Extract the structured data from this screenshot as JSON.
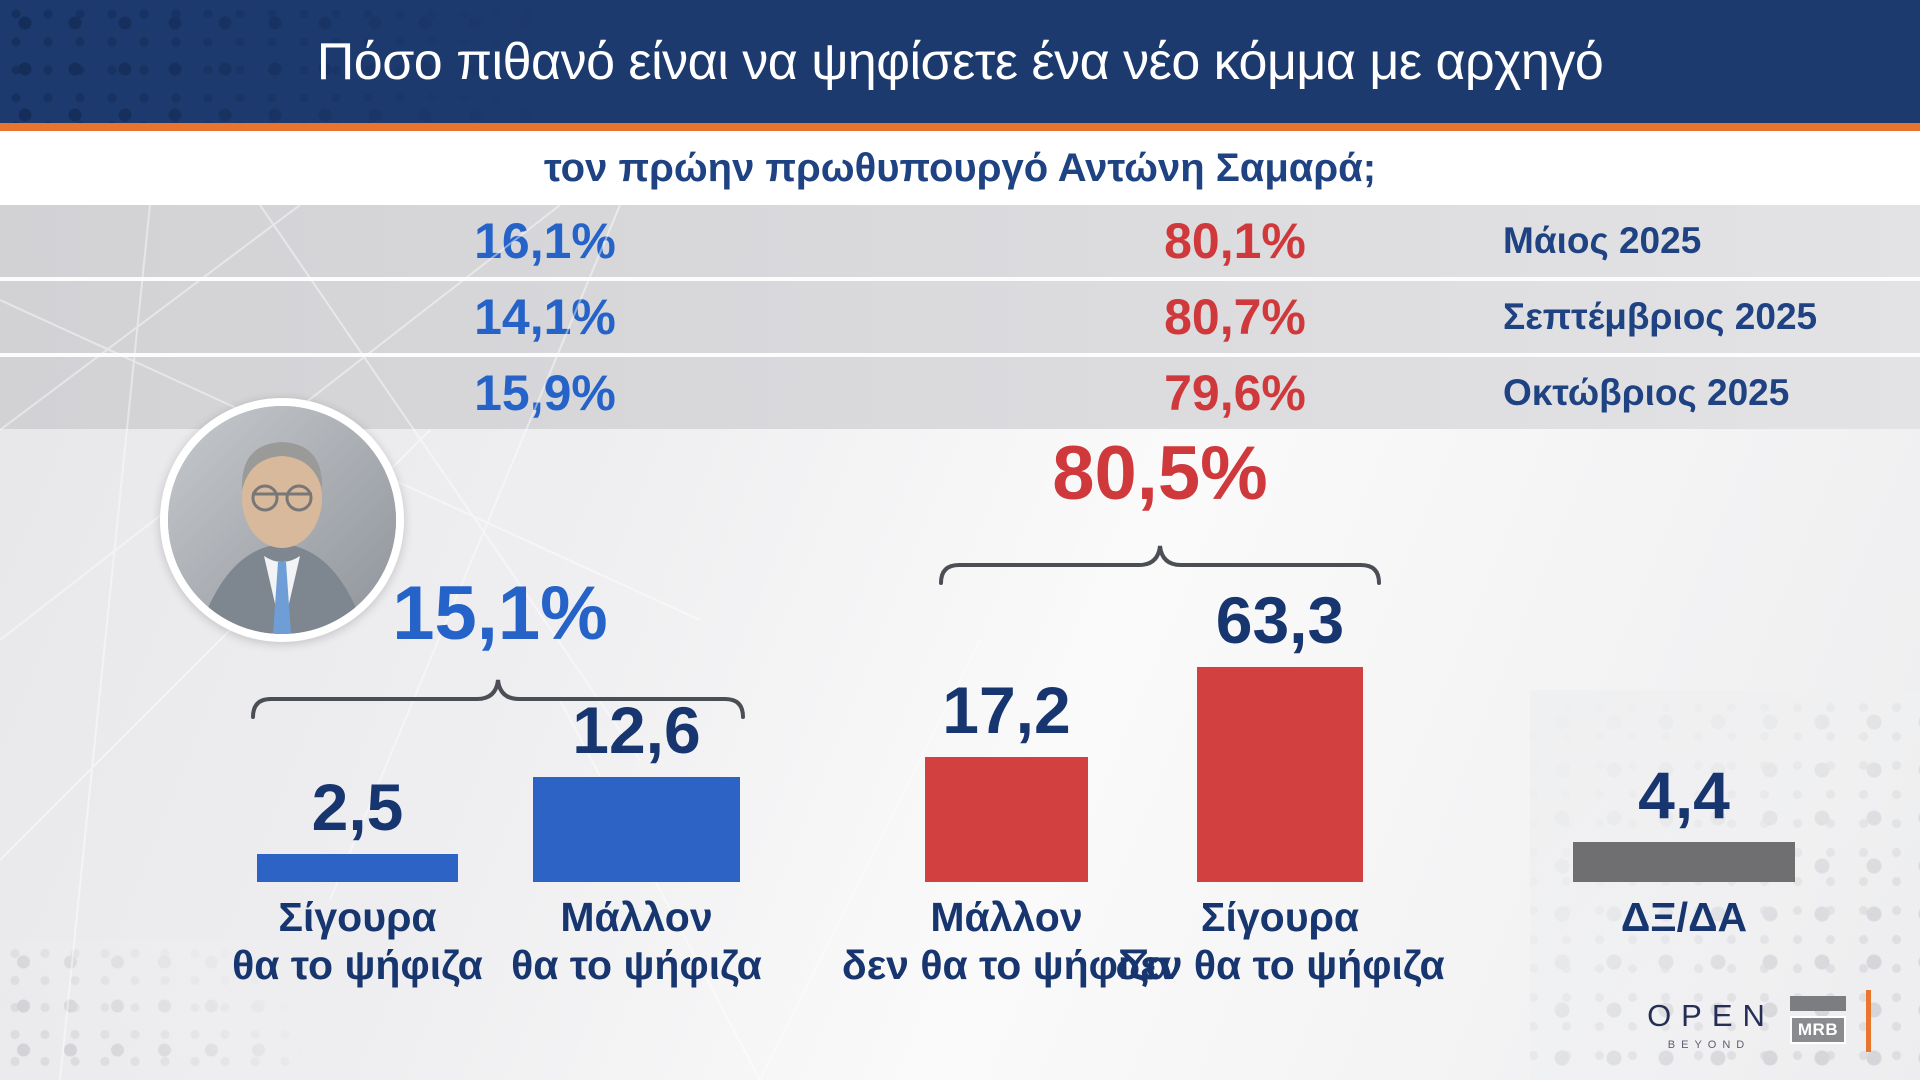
{
  "header": {
    "title": "Πόσο πιθανό είναι να ψηφίσετε ένα νέο κόμμα με αρχηγό",
    "subtitle": "τον πρώην πρωθυπουργό Αντώνη Σαμαρά;"
  },
  "chart_data": {
    "type": "bar",
    "title": "Πόσο πιθανό είναι να ψηφίσετε ένα νέο κόμμα με αρχηγό τον πρώην πρωθυπουργό Αντώνη Σαμαρά;",
    "categories": [
      "Σίγουρα θα το ψήφιζα",
      "Μάλλον θα το ψήφιζα",
      "Μάλλον δεν θα το ψήφιζα",
      "Σίγουρα δεν θα το ψήφιζα",
      "ΔΞ/ΔΑ"
    ],
    "label_lines": [
      [
        "Σίγουρα",
        "θα το ψήφιζα"
      ],
      [
        "Μάλλον",
        "θα το ψήφιζα"
      ],
      [
        "Μάλλον",
        "δεν θα το ψήφιζα"
      ],
      [
        "Σίγουρα",
        "δεν θα το ψήφιζα"
      ],
      [
        "ΔΞ/ΔΑ"
      ]
    ],
    "values": [
      2.5,
      12.6,
      17.2,
      63.3,
      4.4
    ],
    "value_labels": [
      "2,5",
      "12,6",
      "17,2",
      "63,3",
      "4,4"
    ],
    "bar_colors": [
      "#2e63c6",
      "#2e63c6",
      "#d24040",
      "#d24040",
      "#6f6f72"
    ],
    "ylim": [
      0,
      70
    ],
    "grid": false,
    "legend": false,
    "group_totals": [
      {
        "label": "15,1%",
        "color": "#2563c8",
        "covers": [
          "Σίγουρα θα το ψήφιζα",
          "Μάλλον θα το ψήφιζα"
        ]
      },
      {
        "label": "80,5%",
        "color": "#cf393c",
        "covers": [
          "Μάλλον δεν θα το ψήφιζα",
          "Σίγουρα δεν θα το ψήφιζα"
        ]
      }
    ],
    "trend_series": {
      "periods": [
        "Μάιος 2025",
        "Σεπτέμβριος 2025",
        "Οκτώβριος 2025"
      ],
      "would_vote": [
        "16,1%",
        "14,1%",
        "15,9%"
      ],
      "would_not_vote": [
        "80,1%",
        "80,7%",
        "79,6%"
      ]
    }
  },
  "footer": {
    "open": "OPEN",
    "open_tagline": "BEYOND",
    "mrb": "MRB"
  },
  "colors": {
    "header_navy": "#1d3a6e",
    "accent_orange": "#e8742f",
    "positive_blue": "#2563c8",
    "negative_red": "#cf393c",
    "text_navy": "#17356e",
    "neutral_gray": "#6f6f72"
  }
}
